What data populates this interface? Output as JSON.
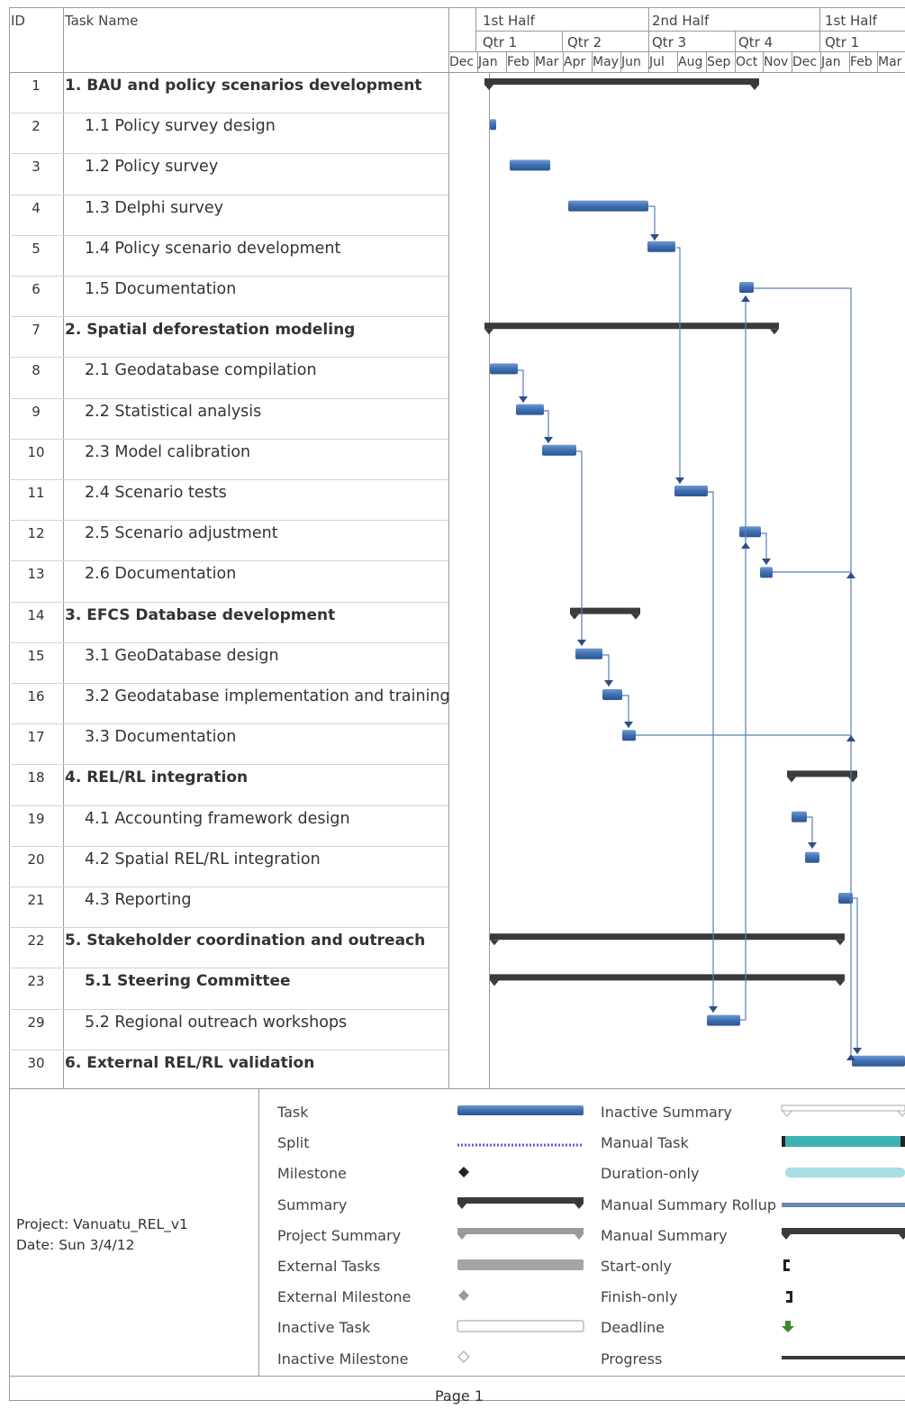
{
  "columns": {
    "id": "ID",
    "name": "Task Name"
  },
  "timescale": {
    "halves": [
      "1st Half",
      "2nd Half",
      "1st Half"
    ],
    "quarters": [
      "Qtr 1",
      "Qtr 2",
      "Qtr 3",
      "Qtr 4",
      "Qtr 1"
    ],
    "months": [
      "Dec",
      "Jan",
      "Feb",
      "Mar",
      "Apr",
      "May",
      "Jun",
      "Jul",
      "Aug",
      "Sep",
      "Oct",
      "Nov",
      "Dec",
      "Jan",
      "Feb",
      "Mar"
    ]
  },
  "tasks": [
    {
      "id": "1",
      "name": "1. BAU and policy scenarios development",
      "bold": true
    },
    {
      "id": "2",
      "name": "1.1 Policy survey design",
      "bold": false
    },
    {
      "id": "3",
      "name": "1.2 Policy survey",
      "bold": false
    },
    {
      "id": "4",
      "name": "1.3 Delphi survey",
      "bold": false
    },
    {
      "id": "5",
      "name": "1.4 Policy scenario development",
      "bold": false
    },
    {
      "id": "6",
      "name": "1.5 Documentation",
      "bold": false
    },
    {
      "id": "7",
      "name": "2. Spatial deforestation modeling",
      "bold": true
    },
    {
      "id": "8",
      "name": "2.1 Geodatabase compilation",
      "bold": false
    },
    {
      "id": "9",
      "name": "2.2 Statistical analysis",
      "bold": false
    },
    {
      "id": "10",
      "name": "2.3 Model calibration",
      "bold": false
    },
    {
      "id": "11",
      "name": "2.4 Scenario tests",
      "bold": false
    },
    {
      "id": "12",
      "name": "2.5 Scenario adjustment",
      "bold": false
    },
    {
      "id": "13",
      "name": "2.6 Documentation",
      "bold": false
    },
    {
      "id": "14",
      "name": "3. EFCS Database development",
      "bold": true
    },
    {
      "id": "15",
      "name": "3.1 GeoDatabase design",
      "bold": false
    },
    {
      "id": "16",
      "name": "3.2 Geodatabase implementation and training",
      "bold": false
    },
    {
      "id": "17",
      "name": "3.3 Documentation",
      "bold": false
    },
    {
      "id": "18",
      "name": "4. REL/RL integration",
      "bold": true
    },
    {
      "id": "19",
      "name": "4.1 Accounting framework design",
      "bold": false
    },
    {
      "id": "20",
      "name": "4.2 Spatial REL/RL integration",
      "bold": false
    },
    {
      "id": "21",
      "name": "4.3 Reporting",
      "bold": false
    },
    {
      "id": "22",
      "name": "5. Stakeholder coordination and outreach",
      "bold": true
    },
    {
      "id": "23",
      "name": "5.1 Steering Committee",
      "bold": true
    },
    {
      "id": "29",
      "name": "5.2 Regional outreach workshops",
      "bold": false
    },
    {
      "id": "30",
      "name": "6. External REL/RL validation",
      "bold": true
    }
  ],
  "legend": {
    "left": [
      "Task",
      "Split",
      "Milestone",
      "Summary",
      "Project Summary",
      "External Tasks",
      "External Milestone",
      "Inactive Task",
      "Inactive Milestone"
    ],
    "right": [
      "Inactive Summary",
      "Manual Task",
      "Duration-only",
      "Manual Summary Rollup",
      "Manual Summary",
      "Start-only",
      "Finish-only",
      "Deadline",
      "Progress"
    ]
  },
  "project": {
    "line1": "Project: Vanuatu_REL_v1",
    "line2": "Date: Sun 3/4/12"
  },
  "footer": {
    "page": "Page 1"
  },
  "colors": {
    "task": "#3f6fb0",
    "summary": "#3a3a3a",
    "manual_task": "#3fb3b3",
    "grid": "#9a9a9a"
  }
}
